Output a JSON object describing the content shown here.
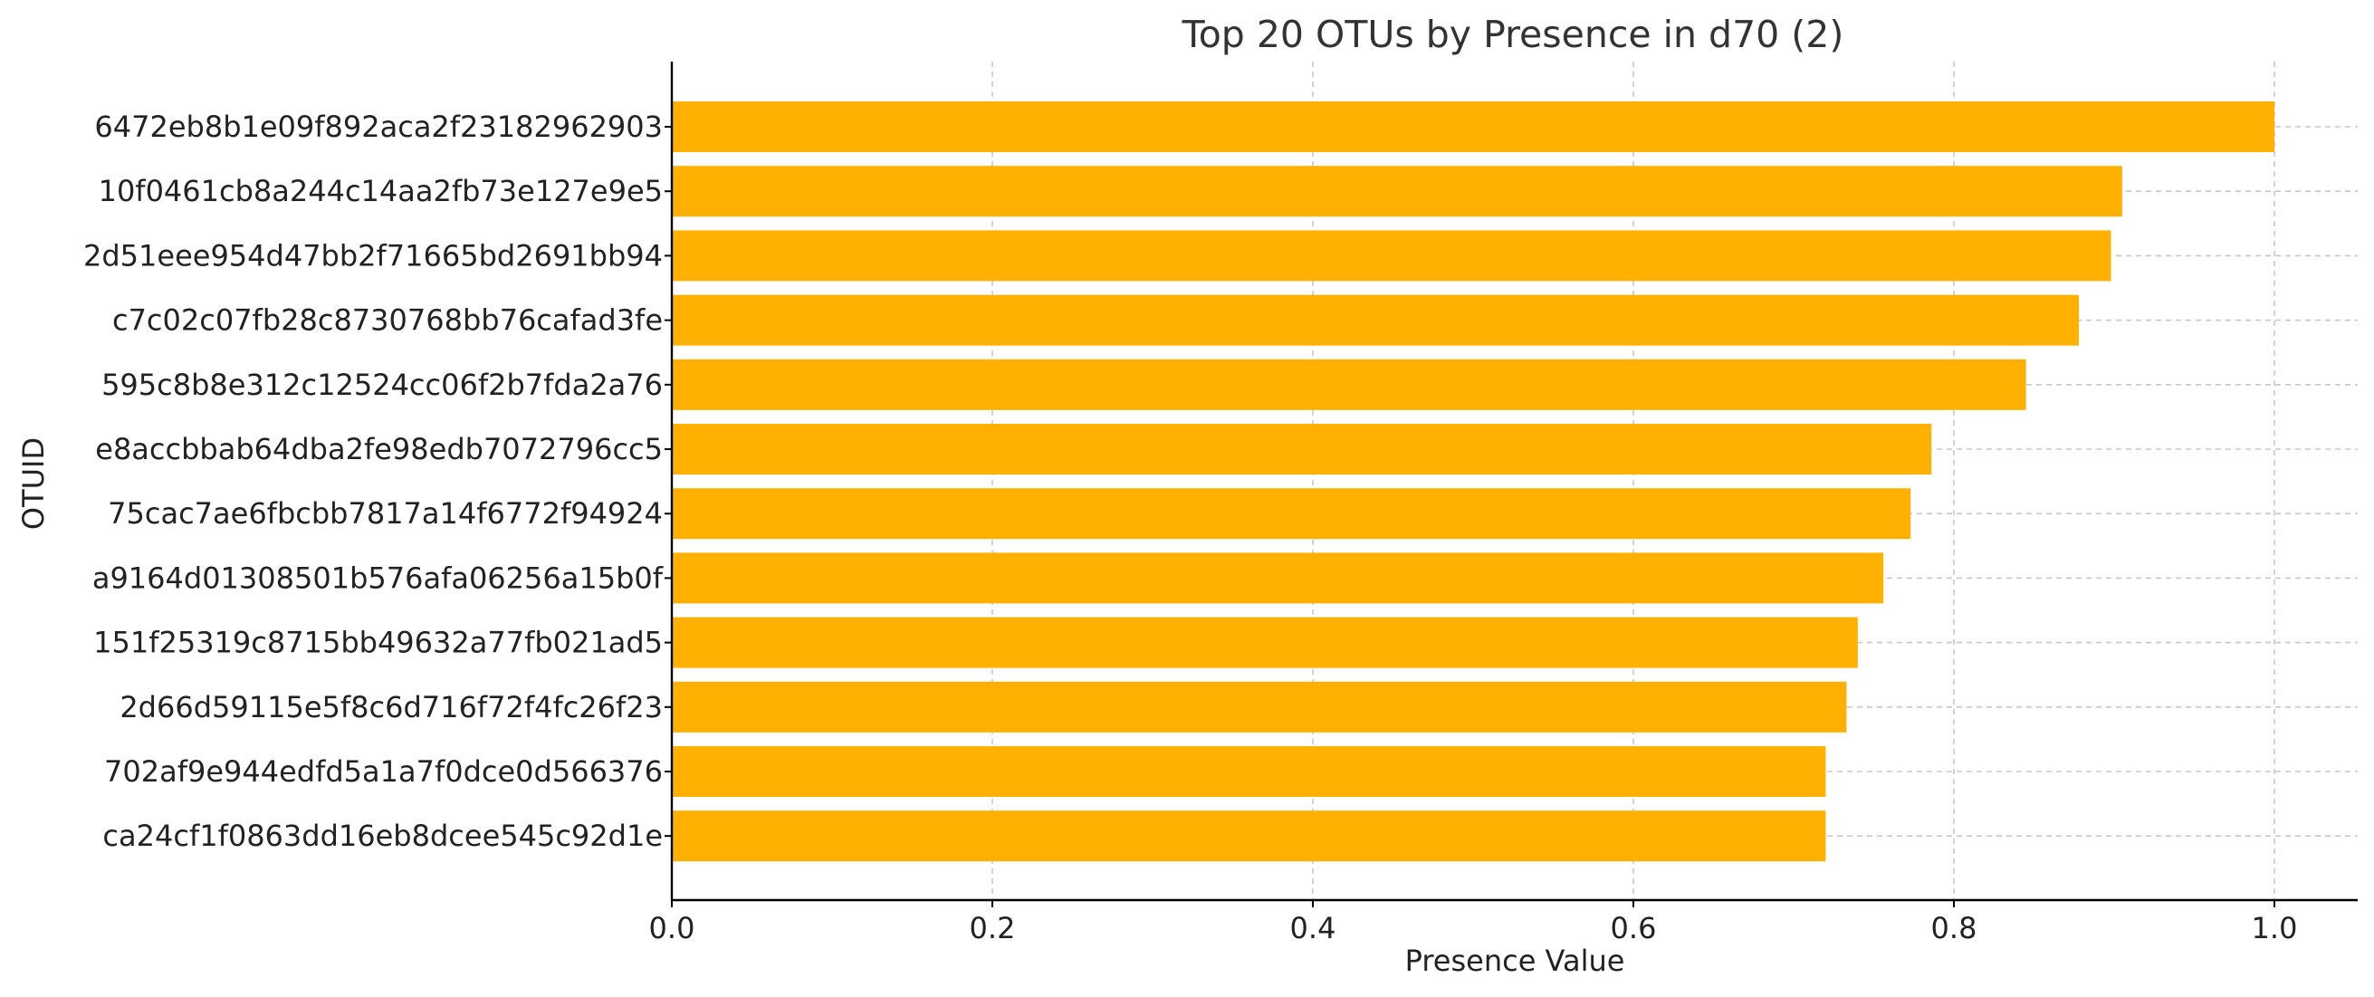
{
  "chart_data": {
    "type": "bar",
    "orientation": "horizontal",
    "title": "Top 20 OTUs by Presence in d70 (2)",
    "xlabel": "Presence Value",
    "ylabel": "OTUID",
    "xlim": [
      0,
      1.05
    ],
    "xticks": [
      "0.0",
      "0.2",
      "0.4",
      "0.6",
      "0.8",
      "1.0"
    ],
    "grid": true,
    "bar_color": "#FFB000",
    "categories": [
      "6472eb8b1e09f892aca2f23182962903",
      "10f0461cb8a244c14aa2fb73e127e9e5",
      "2d51eee954d47bb2f71665bd2691bb94",
      "c7c02c07fb28c8730768bb76cafad3fe",
      "595c8b8e312c12524cc06f2b7fda2a76",
      "e8accbbab64dba2fe98edb7072796cc5",
      "75cac7ae6fbcbb7817a14f6772f94924",
      "a9164d01308501b576afa06256a15b0f",
      "151f25319c8715bb49632a77fb021ad5",
      "2d66d59115e5f8c6d716f72f4fc26f23",
      "702af9e944edfd5a1a7f0dce0d566376",
      "ca24cf1f0863dd16eb8dcee545c92d1e"
    ],
    "values": [
      1.0,
      0.905,
      0.898,
      0.878,
      0.845,
      0.786,
      0.773,
      0.756,
      0.74,
      0.733,
      0.72,
      0.72
    ]
  }
}
